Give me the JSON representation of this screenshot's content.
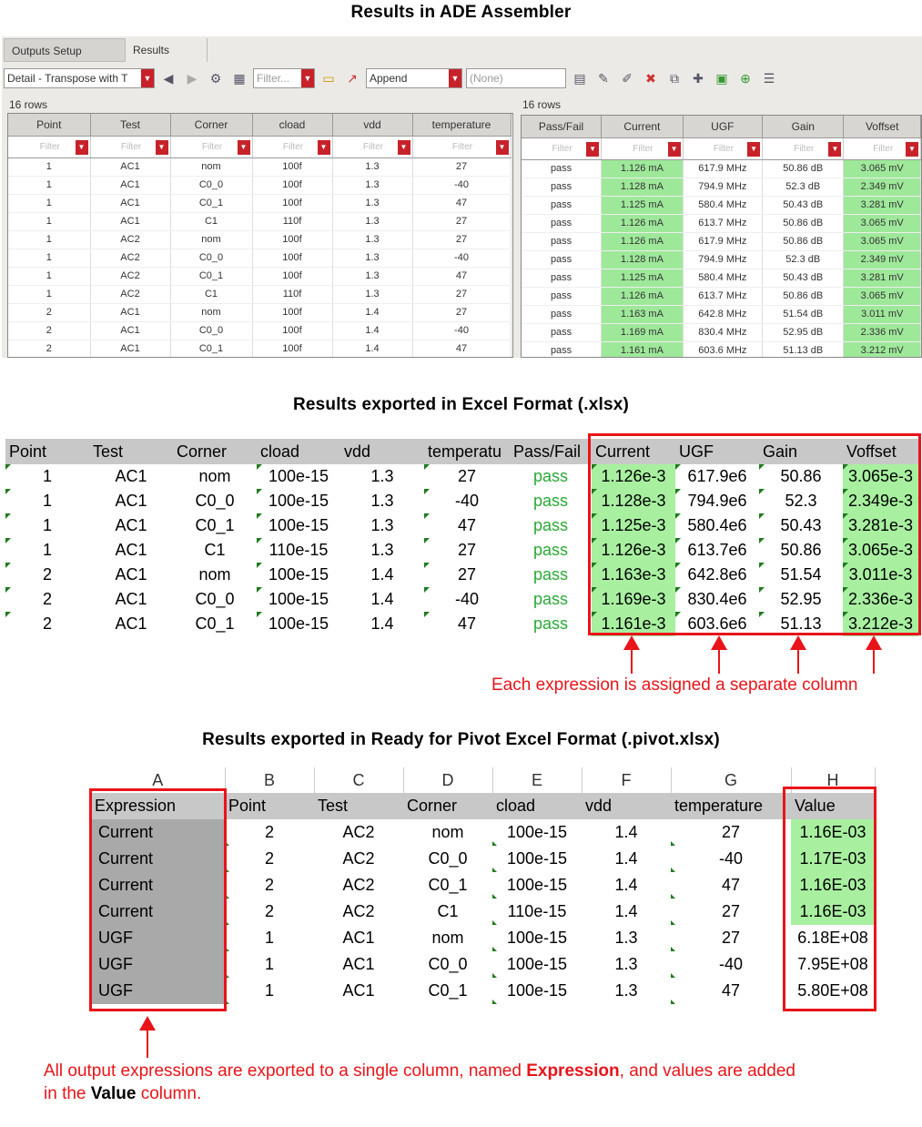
{
  "titles": {
    "ade": "Results in ADE Assembler",
    "xlsx": "Results exported in Excel Format (.xlsx)",
    "pivot": "Results exported in Ready for Pivot Excel Format (.pivot.xlsx)"
  },
  "ade": {
    "tabs": [
      "Outputs Setup",
      "Results"
    ],
    "view_combo": "Detail - Transpose with T",
    "filter_combo": "Filter...",
    "append_combo": "Append",
    "none_combo": "(None)",
    "left_rowcount": "16 rows",
    "right_rowcount": "16 rows",
    "filter_placeholder": "Filter",
    "left_headers": [
      "Point",
      "Test",
      "Corner",
      "cload",
      "vdd",
      "temperature"
    ],
    "right_headers": [
      "Pass/Fail",
      "Current",
      "UGF",
      "Gain",
      "Voffset"
    ],
    "left_rows": [
      [
        "1",
        "AC1",
        "nom",
        "100f",
        "1.3",
        "27"
      ],
      [
        "1",
        "AC1",
        "C0_0",
        "100f",
        "1.3",
        "-40"
      ],
      [
        "1",
        "AC1",
        "C0_1",
        "100f",
        "1.3",
        "47"
      ],
      [
        "1",
        "AC1",
        "C1",
        "110f",
        "1.3",
        "27"
      ],
      [
        "1",
        "AC2",
        "nom",
        "100f",
        "1.3",
        "27"
      ],
      [
        "1",
        "AC2",
        "C0_0",
        "100f",
        "1.3",
        "-40"
      ],
      [
        "1",
        "AC2",
        "C0_1",
        "100f",
        "1.3",
        "47"
      ],
      [
        "1",
        "AC2",
        "C1",
        "110f",
        "1.3",
        "27"
      ],
      [
        "2",
        "AC1",
        "nom",
        "100f",
        "1.4",
        "27"
      ],
      [
        "2",
        "AC1",
        "C0_0",
        "100f",
        "1.4",
        "-40"
      ],
      [
        "2",
        "AC1",
        "C0_1",
        "100f",
        "1.4",
        "47"
      ]
    ],
    "right_rows": [
      [
        "pass",
        "1.126 mA",
        "617.9 MHz",
        "50.86 dB",
        "3.065 mV"
      ],
      [
        "pass",
        "1.128 mA",
        "794.9 MHz",
        "52.3 dB",
        "2.349 mV"
      ],
      [
        "pass",
        "1.125 mA",
        "580.4 MHz",
        "50.43 dB",
        "3.281 mV"
      ],
      [
        "pass",
        "1.126 mA",
        "613.7 MHz",
        "50.86 dB",
        "3.065 mV"
      ],
      [
        "pass",
        "1.126 mA",
        "617.9 MHz",
        "50.86 dB",
        "3.065 mV"
      ],
      [
        "pass",
        "1.128 mA",
        "794.9 MHz",
        "52.3 dB",
        "2.349 mV"
      ],
      [
        "pass",
        "1.125 mA",
        "580.4 MHz",
        "50.43 dB",
        "3.281 mV"
      ],
      [
        "pass",
        "1.126 mA",
        "613.7 MHz",
        "50.86 dB",
        "3.065 mV"
      ],
      [
        "pass",
        "1.163 mA",
        "642.8 MHz",
        "51.54 dB",
        "3.011 mV"
      ],
      [
        "pass",
        "1.169 mA",
        "830.4 MHz",
        "52.95 dB",
        "2.336 mV"
      ],
      [
        "pass",
        "1.161 mA",
        "603.6 MHz",
        "51.13 dB",
        "3.212 mV"
      ]
    ]
  },
  "xlsx": {
    "headers": [
      "Point",
      "Test",
      "Corner",
      "cload",
      "vdd",
      "temperatu",
      "Pass/Fail",
      "Current",
      "UGF",
      "Gain",
      "Voffset"
    ],
    "rows": [
      [
        "1",
        "AC1",
        "nom",
        "100e-15",
        "1.3",
        "27",
        "pass",
        "1.126e-3",
        "617.9e6",
        "50.86",
        "3.065e-3"
      ],
      [
        "1",
        "AC1",
        "C0_0",
        "100e-15",
        "1.3",
        "-40",
        "pass",
        "1.128e-3",
        "794.9e6",
        "52.3",
        "2.349e-3"
      ],
      [
        "1",
        "AC1",
        "C0_1",
        "100e-15",
        "1.3",
        "47",
        "pass",
        "1.125e-3",
        "580.4e6",
        "50.43",
        "3.281e-3"
      ],
      [
        "1",
        "AC1",
        "C1",
        "110e-15",
        "1.3",
        "27",
        "pass",
        "1.126e-3",
        "613.7e6",
        "50.86",
        "3.065e-3"
      ],
      [
        "2",
        "AC1",
        "nom",
        "100e-15",
        "1.4",
        "27",
        "pass",
        "1.163e-3",
        "642.8e6",
        "51.54",
        "3.011e-3"
      ],
      [
        "2",
        "AC1",
        "C0_0",
        "100e-15",
        "1.4",
        "-40",
        "pass",
        "1.169e-3",
        "830.4e6",
        "52.95",
        "2.336e-3"
      ],
      [
        "2",
        "AC1",
        "C0_1",
        "100e-15",
        "1.4",
        "47",
        "pass",
        "1.161e-3",
        "603.6e6",
        "51.13",
        "3.212e-3"
      ]
    ],
    "note": "Each expression is assigned a separate column"
  },
  "pivot": {
    "col_letters": [
      "A",
      "B",
      "C",
      "D",
      "E",
      "F",
      "G",
      "H"
    ],
    "headers": [
      "Expression",
      "Point",
      "Test",
      "Corner",
      "cload",
      "vdd",
      "temperature",
      "Value"
    ],
    "rows": [
      [
        "Current",
        "2",
        "AC2",
        "nom",
        "100e-15",
        "1.4",
        "27",
        "1.16E-03"
      ],
      [
        "Current",
        "2",
        "AC2",
        "C0_0",
        "100e-15",
        "1.4",
        "-40",
        "1.17E-03"
      ],
      [
        "Current",
        "2",
        "AC2",
        "C0_1",
        "100e-15",
        "1.4",
        "47",
        "1.16E-03"
      ],
      [
        "Current",
        "2",
        "AC2",
        "C1",
        "110e-15",
        "1.4",
        "27",
        "1.16E-03"
      ],
      [
        "UGF",
        "1",
        "AC1",
        "nom",
        "100e-15",
        "1.3",
        "27",
        "6.18E+08"
      ],
      [
        "UGF",
        "1",
        "AC1",
        "C0_0",
        "100e-15",
        "1.3",
        "-40",
        "7.95E+08"
      ],
      [
        "UGF",
        "1",
        "AC1",
        "C0_1",
        "100e-15",
        "1.3",
        "47",
        "5.80E+08"
      ]
    ],
    "note_part1": "All output expressions are exported to a single column, named ",
    "note_bold1": "Expression",
    "note_part2": ", and values are added",
    "note_part3": "in the ",
    "note_bold2": "Value",
    "note_part4": " column."
  }
}
